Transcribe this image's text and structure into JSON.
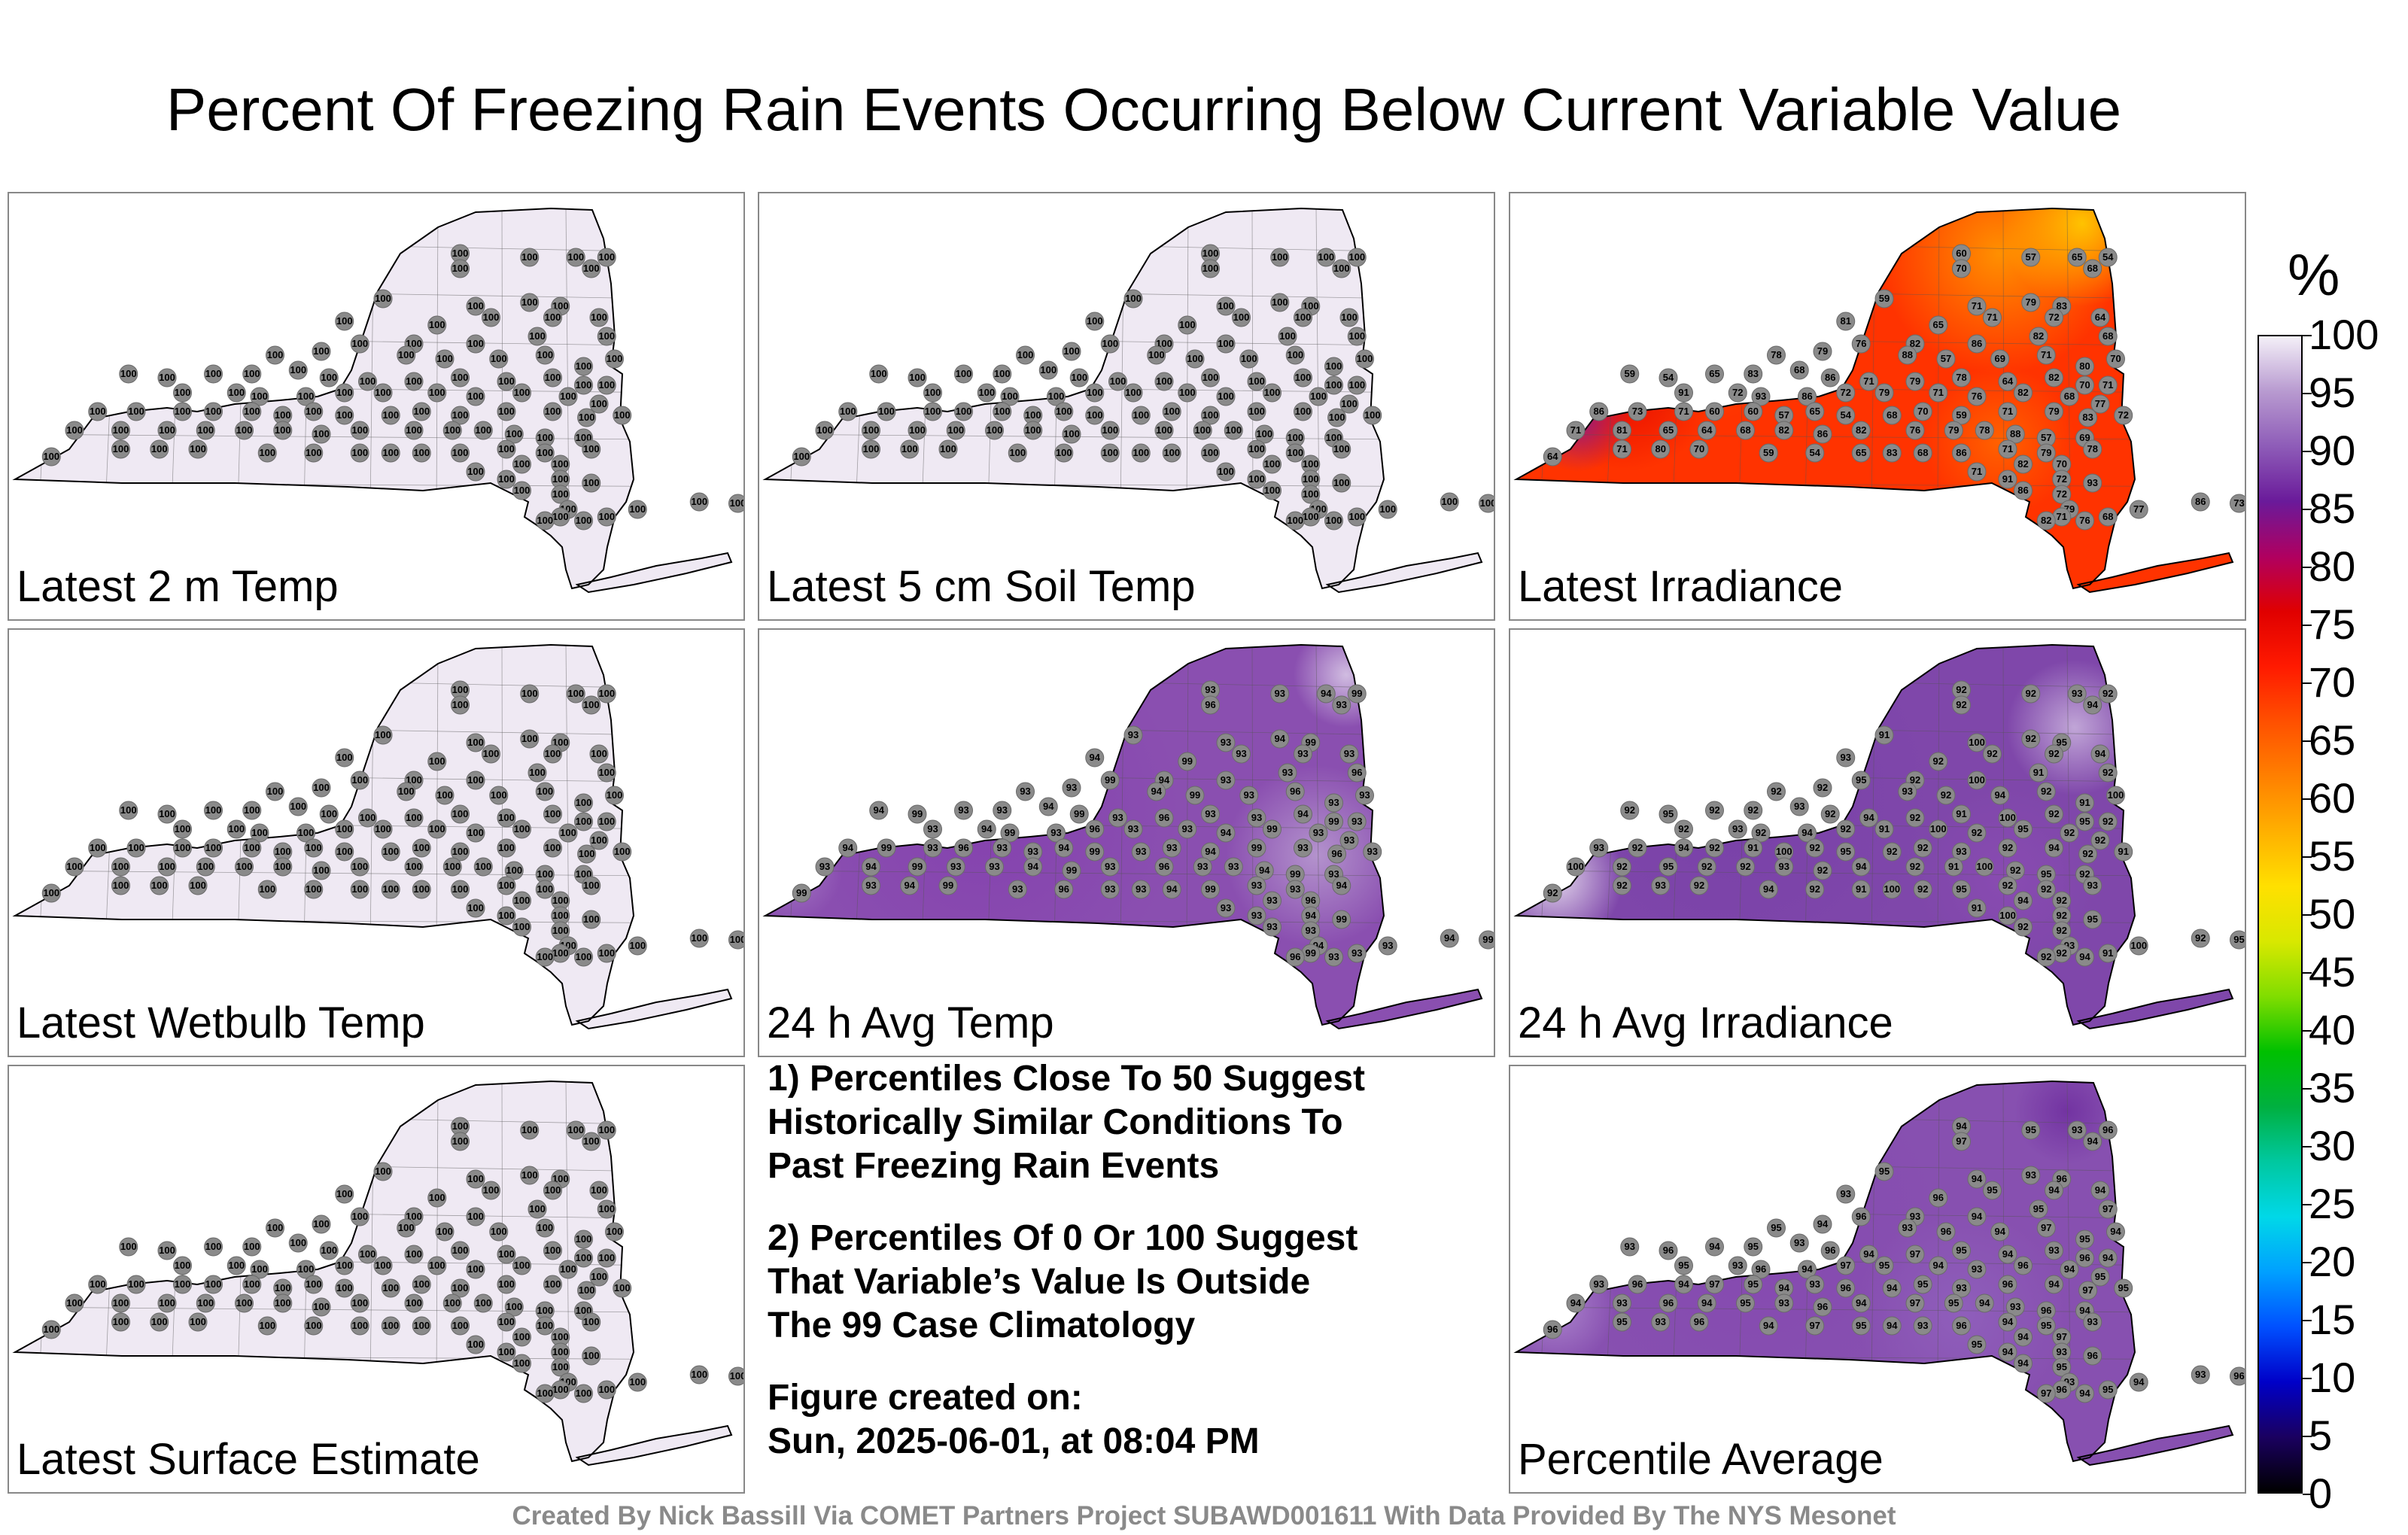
{
  "title": "Percent Of Freezing Rain Events Occurring Below Current Variable Value",
  "panels": [
    {
      "label": "Latest 2 m Temp",
      "mode": "uniform",
      "base": 100,
      "fill": "#efe9f3"
    },
    {
      "label": "Latest 5 cm Soil Temp",
      "mode": "uniform",
      "base": 100,
      "fill": "#efe9f3"
    },
    {
      "label": "Latest Irradiance",
      "mode": "irradiance",
      "base": 72,
      "fill": "#ff3300"
    },
    {
      "label": "Latest Wetbulb Temp",
      "mode": "uniform",
      "base": 100,
      "fill": "#efe9f3"
    },
    {
      "label": "24 h Avg Temp",
      "mode": "purple",
      "base": 93,
      "fill": "#8a4fb0"
    },
    {
      "label": "24 h Avg Irradiance",
      "mode": "purple2",
      "base": 92,
      "fill": "#7f47aa"
    },
    {
      "label": "Latest Surface Estimate",
      "mode": "uniform",
      "base": 100,
      "fill": "#efe9f3"
    },
    {
      "label": "Percentile Average",
      "mode": "purple3",
      "base": 94,
      "fill": "#8750b0"
    }
  ],
  "notes": [
    "1) Percentiles Close To 50 Suggest\nHistorically Similar Conditions To\nPast Freezing Rain Events",
    "2) Percentiles Of 0 Or 100 Suggest\nThat Variable’s Value Is Outside\nThe 99 Case Climatology",
    "Figure created on:\nSun, 2025-06-01, at 08:04 PM"
  ],
  "colorbar": {
    "unit": "%",
    "ticks": [
      "0",
      "5",
      "10",
      "15",
      "20",
      "25",
      "30",
      "35",
      "40",
      "45",
      "50",
      "55",
      "60",
      "65",
      "70",
      "75",
      "80",
      "85",
      "90",
      "95",
      "100"
    ],
    "colors": [
      "#000000",
      "#1a0060",
      "#0000c8",
      "#0050ff",
      "#00a0ff",
      "#00d8e8",
      "#00c8a0",
      "#00b040",
      "#00c000",
      "#80dd00",
      "#d8e800",
      "#ffe000",
      "#ffb000",
      "#ff8000",
      "#ff5000",
      "#ff1a00",
      "#e00000",
      "#b00060",
      "#6a1a9a",
      "#8e5cb8",
      "#b89ad0",
      "#f4f0f8"
    ]
  },
  "footer": "Created By Nick Bassill Via COMET Partners Project SUBAWD001611 With Data Provided By The NYS Mesonet"
}
